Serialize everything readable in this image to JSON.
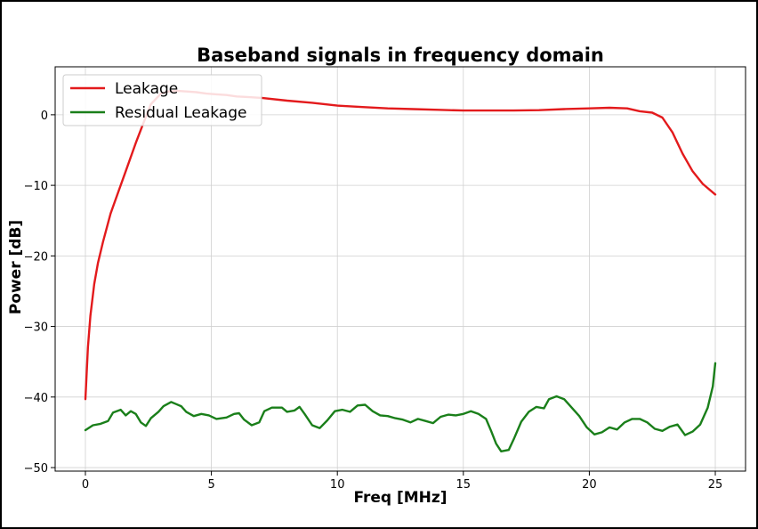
{
  "chart_data": {
    "type": "line",
    "title": "Baseband signals in frequency domain",
    "xlabel": "Freq [MHz]",
    "ylabel": "Power [dB]",
    "xlim": [
      -1.2,
      26.2
    ],
    "ylim": [
      -50.5,
      6.8
    ],
    "x_ticks": [
      0,
      5,
      10,
      15,
      20,
      25
    ],
    "x_tick_labels": [
      "0",
      "5",
      "10",
      "15",
      "20",
      "25"
    ],
    "y_ticks": [
      0,
      -10,
      -20,
      -30,
      -40,
      -50
    ],
    "y_tick_labels": [
      "0",
      "−10",
      "−20",
      "−30",
      "−40",
      "−50"
    ],
    "grid": true,
    "legend_position": "upper-left",
    "series": [
      {
        "name": "Leakage",
        "color": "#e31a1c",
        "points": [
          [
            0,
            -40.3
          ],
          [
            0.1,
            -33
          ],
          [
            0.2,
            -28.5
          ],
          [
            0.35,
            -24
          ],
          [
            0.5,
            -21
          ],
          [
            0.7,
            -18
          ],
          [
            1.0,
            -14
          ],
          [
            1.3,
            -11
          ],
          [
            1.6,
            -8
          ],
          [
            2.0,
            -4
          ],
          [
            2.3,
            -1.2
          ],
          [
            2.6,
            1.5
          ],
          [
            3.0,
            3.0
          ],
          [
            3.3,
            3.3
          ],
          [
            3.6,
            3.4
          ],
          [
            4.0,
            3.3
          ],
          [
            4.4,
            3.2
          ],
          [
            4.8,
            3.0
          ],
          [
            5.2,
            2.9
          ],
          [
            5.6,
            2.8
          ],
          [
            6.0,
            2.6
          ],
          [
            6.5,
            2.5
          ],
          [
            7.0,
            2.4
          ],
          [
            8.0,
            2.0
          ],
          [
            9.0,
            1.7
          ],
          [
            10.0,
            1.3
          ],
          [
            11.0,
            1.1
          ],
          [
            12.0,
            0.9
          ],
          [
            13.0,
            0.8
          ],
          [
            14.0,
            0.7
          ],
          [
            15.0,
            0.6
          ],
          [
            16.0,
            0.6
          ],
          [
            17.0,
            0.6
          ],
          [
            18.0,
            0.65
          ],
          [
            19.0,
            0.8
          ],
          [
            20.0,
            0.9
          ],
          [
            20.8,
            1.0
          ],
          [
            21.5,
            0.9
          ],
          [
            22.0,
            0.5
          ],
          [
            22.5,
            0.3
          ],
          [
            22.9,
            -0.4
          ],
          [
            23.3,
            -2.5
          ],
          [
            23.7,
            -5.5
          ],
          [
            24.1,
            -8.0
          ],
          [
            24.5,
            -9.8
          ],
          [
            25.0,
            -11.3
          ]
        ]
      },
      {
        "name": "Residual Leakage",
        "color": "#1a7f1a",
        "points": [
          [
            0,
            -44.7
          ],
          [
            0.3,
            -44.0
          ],
          [
            0.6,
            -43.8
          ],
          [
            0.9,
            -43.4
          ],
          [
            1.1,
            -42.2
          ],
          [
            1.4,
            -41.8
          ],
          [
            1.6,
            -42.6
          ],
          [
            1.8,
            -42.0
          ],
          [
            2.0,
            -42.4
          ],
          [
            2.2,
            -43.6
          ],
          [
            2.4,
            -44.1
          ],
          [
            2.6,
            -43.0
          ],
          [
            2.9,
            -42.1
          ],
          [
            3.1,
            -41.3
          ],
          [
            3.4,
            -40.7
          ],
          [
            3.6,
            -41.0
          ],
          [
            3.8,
            -41.3
          ],
          [
            4.0,
            -42.1
          ],
          [
            4.3,
            -42.7
          ],
          [
            4.6,
            -42.4
          ],
          [
            4.9,
            -42.6
          ],
          [
            5.2,
            -43.1
          ],
          [
            5.6,
            -42.9
          ],
          [
            5.9,
            -42.4
          ],
          [
            6.1,
            -42.3
          ],
          [
            6.3,
            -43.2
          ],
          [
            6.6,
            -44.0
          ],
          [
            6.9,
            -43.6
          ],
          [
            7.1,
            -42.0
          ],
          [
            7.4,
            -41.5
          ],
          [
            7.8,
            -41.5
          ],
          [
            8.0,
            -42.1
          ],
          [
            8.3,
            -41.9
          ],
          [
            8.5,
            -41.4
          ],
          [
            8.7,
            -42.4
          ],
          [
            9.0,
            -44.0
          ],
          [
            9.3,
            -44.4
          ],
          [
            9.6,
            -43.3
          ],
          [
            9.9,
            -42.0
          ],
          [
            10.2,
            -41.8
          ],
          [
            10.5,
            -42.1
          ],
          [
            10.8,
            -41.2
          ],
          [
            11.1,
            -41.1
          ],
          [
            11.4,
            -42.0
          ],
          [
            11.7,
            -42.6
          ],
          [
            12.0,
            -42.7
          ],
          [
            12.3,
            -43.0
          ],
          [
            12.6,
            -43.2
          ],
          [
            12.9,
            -43.6
          ],
          [
            13.2,
            -43.1
          ],
          [
            13.5,
            -43.4
          ],
          [
            13.8,
            -43.7
          ],
          [
            14.1,
            -42.8
          ],
          [
            14.4,
            -42.5
          ],
          [
            14.7,
            -42.6
          ],
          [
            15.0,
            -42.4
          ],
          [
            15.3,
            -42.0
          ],
          [
            15.6,
            -42.4
          ],
          [
            15.9,
            -43.1
          ],
          [
            16.1,
            -44.8
          ],
          [
            16.3,
            -46.6
          ],
          [
            16.5,
            -47.7
          ],
          [
            16.8,
            -47.5
          ],
          [
            17.0,
            -46.0
          ],
          [
            17.3,
            -43.5
          ],
          [
            17.6,
            -42.1
          ],
          [
            17.9,
            -41.4
          ],
          [
            18.2,
            -41.6
          ],
          [
            18.4,
            -40.3
          ],
          [
            18.7,
            -39.9
          ],
          [
            19.0,
            -40.3
          ],
          [
            19.3,
            -41.5
          ],
          [
            19.6,
            -42.7
          ],
          [
            19.9,
            -44.3
          ],
          [
            20.2,
            -45.3
          ],
          [
            20.5,
            -45.0
          ],
          [
            20.8,
            -44.3
          ],
          [
            21.1,
            -44.6
          ],
          [
            21.4,
            -43.6
          ],
          [
            21.7,
            -43.1
          ],
          [
            22.0,
            -43.1
          ],
          [
            22.3,
            -43.6
          ],
          [
            22.6,
            -44.5
          ],
          [
            22.9,
            -44.8
          ],
          [
            23.2,
            -44.2
          ],
          [
            23.5,
            -43.9
          ],
          [
            23.8,
            -45.4
          ],
          [
            24.1,
            -44.9
          ],
          [
            24.4,
            -43.9
          ],
          [
            24.7,
            -41.5
          ],
          [
            24.9,
            -38.5
          ],
          [
            25.0,
            -35.2
          ]
        ]
      }
    ]
  }
}
